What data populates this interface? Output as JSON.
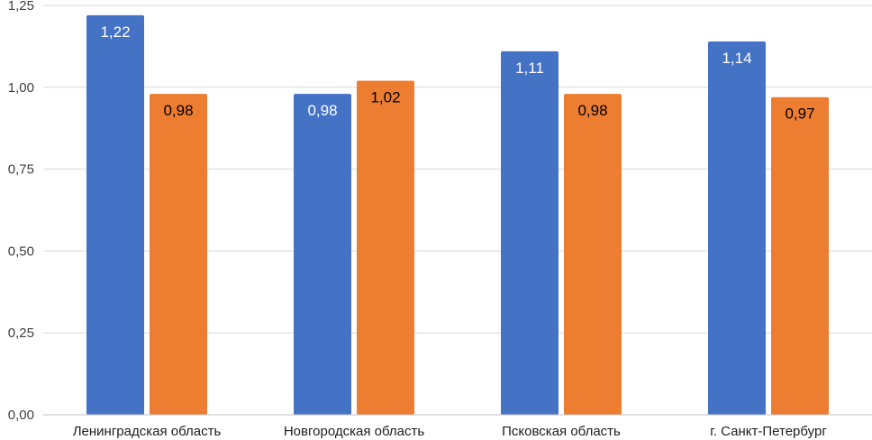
{
  "chart_data": {
    "type": "bar",
    "title": "",
    "xlabel": "",
    "ylabel": "",
    "categories": [
      "Ленинградская область",
      "Новгородская область",
      "Псковская область",
      "г. Санкт-Петербург"
    ],
    "series": [
      {
        "values": [
          1.22,
          0.98,
          1.11,
          1.14
        ],
        "labels": [
          "1,22",
          "0,98",
          "1,11",
          "1,14"
        ],
        "color": "#4472c4",
        "label_color": "#ffffff"
      },
      {
        "values": [
          0.98,
          1.02,
          0.98,
          0.97
        ],
        "labels": [
          "0,98",
          "1,02",
          "0,98",
          "0,97"
        ],
        "color": "#ed7d31",
        "label_color": "#000000"
      }
    ],
    "ylim": [
      0,
      1.25
    ],
    "yticks": [
      0,
      0.25,
      0.5,
      0.75,
      1.0,
      1.25
    ],
    "ytick_labels": [
      "0,00",
      "0,25",
      "0,50",
      "0,75",
      "1,00",
      "1,25"
    ],
    "grid": true,
    "legend": "none"
  }
}
